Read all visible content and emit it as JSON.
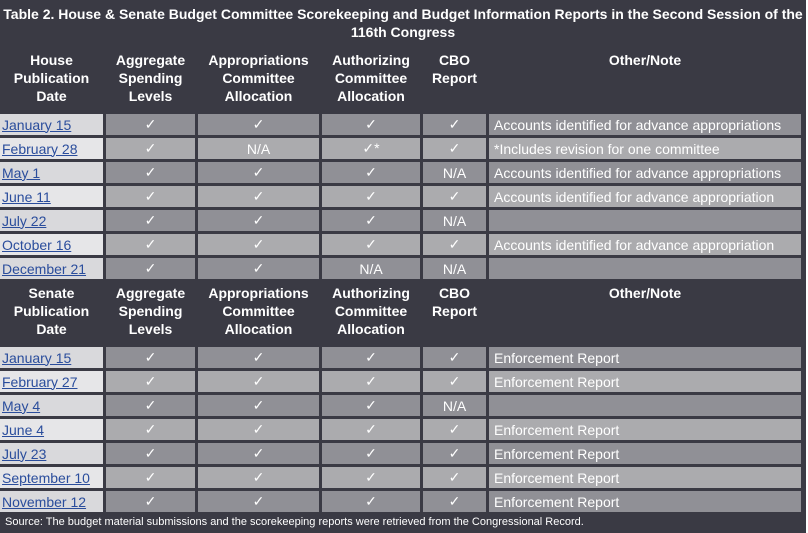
{
  "title": "Table 2. House & Senate Budget Committee Scorekeeping and Budget Information Reports in the Second Session of the 116th Congress",
  "house_header": [
    "House Publication Date",
    "Aggregate Spending Levels",
    "Appropriations Committee Allocation",
    "Authorizing Committee Allocation",
    "CBO Report",
    "Other/Note"
  ],
  "house_rows": [
    {
      "date": "January 15",
      "agg": "✓",
      "approp": "✓",
      "auth": "✓",
      "cbo": "✓",
      "note": "Accounts identified for advance appropriations"
    },
    {
      "date": "February 28",
      "agg": "✓",
      "approp": "N/A",
      "auth": "✓*",
      "cbo": "✓",
      "note": "*Includes revision for one committee"
    },
    {
      "date": "May 1",
      "agg": "✓",
      "approp": "✓",
      "auth": "✓",
      "cbo": "N/A",
      "note": "Accounts identified for advance appropriations"
    },
    {
      "date": "June 11",
      "agg": "✓",
      "approp": "✓",
      "auth": "✓",
      "cbo": "✓",
      "note": "Accounts identified for advance appropriation"
    },
    {
      "date": "July 22",
      "agg": "✓",
      "approp": "✓",
      "auth": "✓",
      "cbo": "N/A",
      "note": ""
    },
    {
      "date": "October 16",
      "agg": "✓",
      "approp": "✓",
      "auth": "✓",
      "cbo": "✓",
      "note": "Accounts identified for advance appropriation"
    },
    {
      "date": "December 21",
      "agg": "✓",
      "approp": "✓",
      "auth": "N/A",
      "cbo": "N/A",
      "note": ""
    }
  ],
  "senate_header": [
    "Senate Publication Date",
    "Aggregate Spending Levels",
    "Appropriations Committee Allocation",
    "Authorizing Committee Allocation",
    "CBO Report",
    "Other/Note"
  ],
  "senate_rows": [
    {
      "date": "January 15",
      "agg": "✓",
      "approp": "✓",
      "auth": "✓",
      "cbo": "✓",
      "note": "Enforcement Report"
    },
    {
      "date": "February 27",
      "agg": "✓",
      "approp": "✓",
      "auth": "✓",
      "cbo": "✓",
      "note": "Enforcement Report"
    },
    {
      "date": "May 4",
      "agg": "✓",
      "approp": "✓",
      "auth": "✓",
      "cbo": "N/A",
      "note": ""
    },
    {
      "date": "June 4",
      "agg": "✓",
      "approp": "✓",
      "auth": "✓",
      "cbo": "✓",
      "note": "Enforcement Report"
    },
    {
      "date": "July 23",
      "agg": "✓",
      "approp": "✓",
      "auth": "✓",
      "cbo": "✓",
      "note": "Enforcement Report"
    },
    {
      "date": "September 10",
      "agg": "✓",
      "approp": "✓",
      "auth": "✓",
      "cbo": "✓",
      "note": "Enforcement Report"
    },
    {
      "date": "November 12",
      "agg": "✓",
      "approp": "✓",
      "auth": "✓",
      "cbo": "✓",
      "note": "Enforcement Report"
    }
  ],
  "source": "Source: The budget material submissions and the scorekeeping reports were retrieved from the Congressional Record."
}
